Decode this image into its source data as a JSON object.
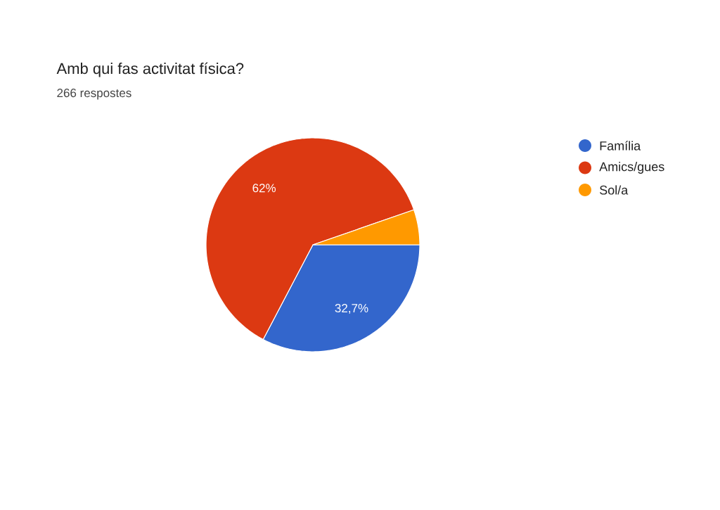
{
  "chart_data": {
    "type": "pie",
    "title": "Amb qui fas activitat física?",
    "subtitle": "266 respostes",
    "categories": [
      "Família",
      "Amics/gues",
      "Sol/a"
    ],
    "values": [
      32.7,
      62,
      5.3
    ],
    "colors": [
      "#3366cc",
      "#dc3912",
      "#ff9900"
    ],
    "value_labels": [
      "32,7%",
      "62%",
      null
    ],
    "legend": "right"
  }
}
